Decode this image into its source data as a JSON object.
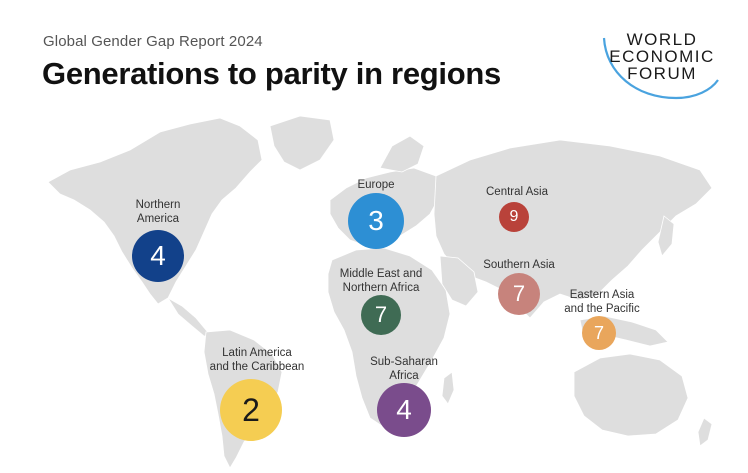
{
  "header": {
    "subtitle": "Global Gender Gap Report 2024",
    "title": "Generations to parity in regions"
  },
  "logo": {
    "line1": "WORLD",
    "line2": "ECONOMIC",
    "line3": "FORUM",
    "arc_color": "#4aa3df"
  },
  "regions": [
    {
      "name": "Northern America",
      "label_line1": "Northern",
      "label_line2": "America",
      "generations": "4",
      "color": "#12418a"
    },
    {
      "name": "Europe",
      "label_line1": "Europe",
      "label_line2": "",
      "generations": "3",
      "color": "#2d8fd4"
    },
    {
      "name": "Central Asia",
      "label_line1": "Central Asia",
      "label_line2": "",
      "generations": "9",
      "color": "#b9423a"
    },
    {
      "name": "Middle East and Northern Africa",
      "label_line1": "Middle East and",
      "label_line2": "Northern Africa",
      "generations": "7",
      "color": "#3f6b54"
    },
    {
      "name": "Southern Asia",
      "label_line1": "Southern Asia",
      "label_line2": "",
      "generations": "7",
      "color": "#c7837c"
    },
    {
      "name": "Eastern Asia and the Pacific",
      "label_line1": "Eastern Asia",
      "label_line2": "and the Pacific",
      "generations": "7",
      "color": "#e9a65c"
    },
    {
      "name": "Latin America and the Caribbean",
      "label_line1": "Latin America",
      "label_line2": "and the Caribbean",
      "generations": "2",
      "color": "#f5cd52"
    },
    {
      "name": "Sub-Saharan Africa",
      "label_line1": "Sub-Saharan",
      "label_line2": "Africa",
      "generations": "4",
      "color": "#7a4c8c"
    }
  ],
  "map": {
    "land_color": "#dedede"
  }
}
